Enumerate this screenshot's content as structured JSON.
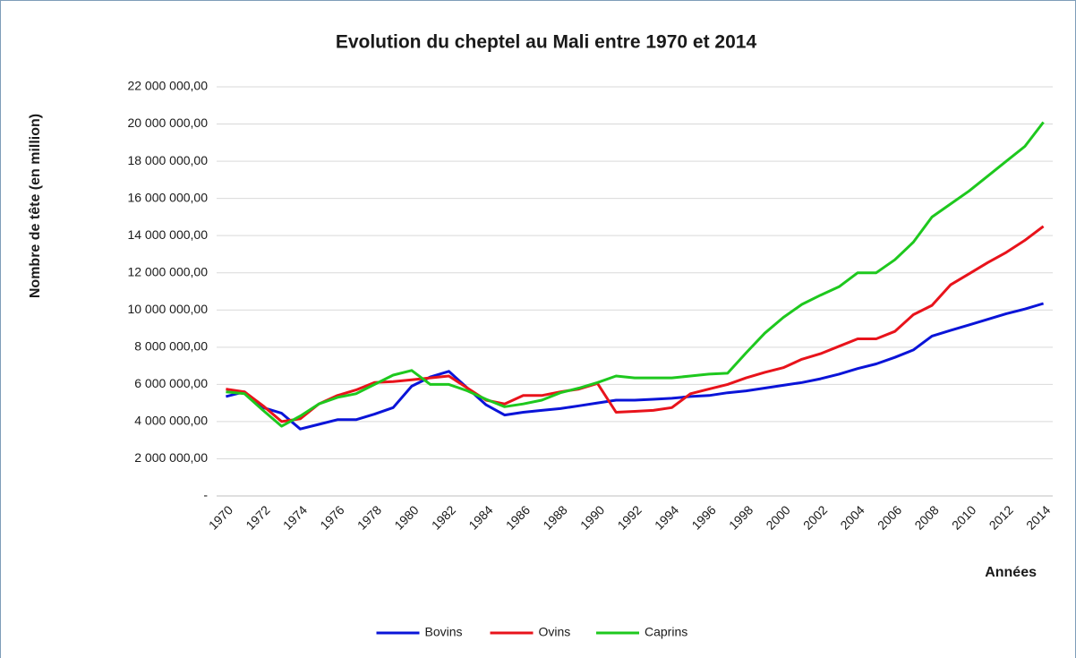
{
  "chart_data": {
    "type": "line",
    "title": "Evolution du cheptel au Mali entre 1970 et 2014",
    "y_label": "Nombre de tête (en million)",
    "x_label": "Années",
    "categories": [
      "1970",
      null,
      "1972",
      null,
      "1974",
      null,
      "1976",
      null,
      "1978",
      null,
      "1980",
      null,
      "1982",
      null,
      "1984",
      null,
      "1986",
      null,
      "1988",
      null,
      "1990",
      null,
      "1992",
      null,
      "1994",
      null,
      "1996",
      null,
      "1998",
      null,
      "2000",
      null,
      "2002",
      null,
      "2004",
      null,
      "2006",
      null,
      "2008",
      null,
      "2010",
      null,
      "2012",
      null,
      "2014"
    ],
    "series": [
      {
        "name": "Bovins",
        "color": "#0a14d8",
        "values": [
          5350000,
          5600000,
          4750000,
          4450000,
          3600000,
          3850000,
          4100000,
          4100000,
          4400000,
          4750000,
          5900000,
          6400000,
          6700000,
          5800000,
          4900000,
          4350000,
          4500000,
          4600000,
          4700000,
          4850000,
          5000000,
          5150000,
          5150000,
          5200000,
          5250000,
          5350000,
          5400000,
          5550000,
          5650000,
          5800000,
          5950000,
          6100000,
          6300000,
          6550000,
          6850000,
          7100000,
          7450000,
          7850000,
          8600000,
          8900000,
          9200000,
          9500000,
          9800000,
          10050000,
          10350000
        ]
      },
      {
        "name": "Ovins",
        "color": "#e8131b",
        "values": [
          5750000,
          5600000,
          4850000,
          4000000,
          4150000,
          4950000,
          5400000,
          5700000,
          6100000,
          6150000,
          6250000,
          6350000,
          6450000,
          5800000,
          5150000,
          4950000,
          5400000,
          5400000,
          5600000,
          5750000,
          6050000,
          4500000,
          4550000,
          4600000,
          4750000,
          5500000,
          5750000,
          6000000,
          6350000,
          6650000,
          6900000,
          7350000,
          7650000,
          8050000,
          8450000,
          8450000,
          8850000,
          9750000,
          10250000,
          11350000,
          11950000,
          12550000,
          13100000,
          13750000,
          14500000
        ]
      },
      {
        "name": "Caprins",
        "color": "#1ec81e",
        "values": [
          5600000,
          5500000,
          4600000,
          3750000,
          4300000,
          4950000,
          5300000,
          5500000,
          6000000,
          6500000,
          6750000,
          6000000,
          6000000,
          5650000,
          5200000,
          4800000,
          4950000,
          5150000,
          5550000,
          5800000,
          6100000,
          6450000,
          6350000,
          6350000,
          6350000,
          6450000,
          6550000,
          6600000,
          7700000,
          8750000,
          9600000,
          10300000,
          10800000,
          11250000,
          12000000,
          12000000,
          12700000,
          13650000,
          15000000,
          15700000,
          16400000,
          17200000,
          18000000,
          18800000,
          20100000
        ]
      }
    ],
    "ylim": [
      0,
      22000000
    ],
    "yticks": [
      {
        "value": 0,
        "label": "-"
      },
      {
        "value": 2000000,
        "label": "2 000 000,00"
      },
      {
        "value": 4000000,
        "label": "4 000 000,00"
      },
      {
        "value": 6000000,
        "label": "6 000 000,00"
      },
      {
        "value": 8000000,
        "label": "8 000 000,00"
      },
      {
        "value": 10000000,
        "label": "10 000 000,00"
      },
      {
        "value": 12000000,
        "label": "12 000 000,00"
      },
      {
        "value": 14000000,
        "label": "14 000 000,00"
      },
      {
        "value": 16000000,
        "label": "16 000 000,00"
      },
      {
        "value": 18000000,
        "label": "18 000 000,00"
      },
      {
        "value": 20000000,
        "label": "20 000 000,00"
      },
      {
        "value": 22000000,
        "label": "22 000 000,00"
      }
    ],
    "grid": true,
    "legend": "bottom"
  }
}
